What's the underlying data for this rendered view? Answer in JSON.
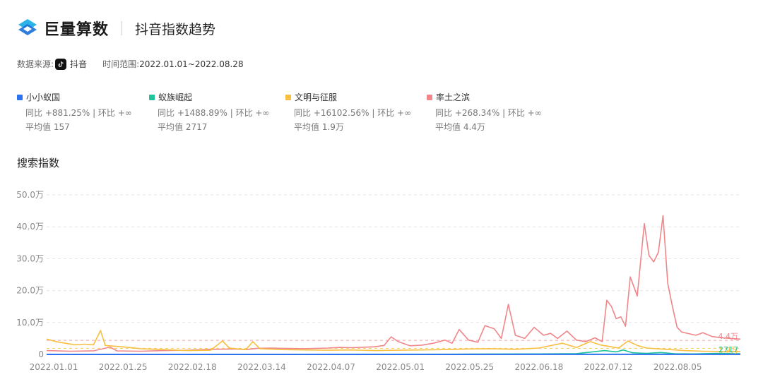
{
  "header": {
    "brand": "巨量算数",
    "title": "抖音指数趋势"
  },
  "source": {
    "source_label": "数据来源:",
    "source_name": "抖音",
    "source_icon": "tiktok-icon",
    "range_label": "时间范围:",
    "range_value": "2022.01.01~2022.08.28"
  },
  "legend": [
    {
      "name": "小小蚁国",
      "color": "#2d72f0",
      "compare": "同比 +881.25% | 环比 +∞",
      "average": "平均值 157"
    },
    {
      "name": "蚁族崛起",
      "color": "#1cc49a",
      "compare": "同比 +1488.89% | 环比 +∞",
      "average": "平均值 2717"
    },
    {
      "name": "文明与征服",
      "color": "#f7bf3f",
      "compare": "同比 +16102.56% | 环比 +∞",
      "average": "平均值 1.9万"
    },
    {
      "name": "率土之滨",
      "color": "#f0868a",
      "compare": "同比 +268.34% | 环比 +∞",
      "average": "平均值 4.4万"
    }
  ],
  "section_title": "搜索指数",
  "chart_data": {
    "type": "line",
    "title": "",
    "xlabel": "",
    "ylabel": "",
    "ylim": [
      0,
      500000
    ],
    "y_ticks": [
      0,
      100000,
      200000,
      300000,
      400000,
      500000
    ],
    "y_tick_labels": [
      "0",
      "10.0万",
      "20.0万",
      "30.0万",
      "40.0万",
      "50.0万"
    ],
    "x_tick_labels": [
      "2022.01.01",
      "2022.01.25",
      "2022.02.18",
      "2022.03.14",
      "2022.04.07",
      "2022.05.01",
      "2022.05.25",
      "2022.06.18",
      "2022.07.12",
      "2022.08.05"
    ],
    "x_tick_days": [
      0,
      24,
      48,
      72,
      96,
      120,
      144,
      168,
      192,
      216
    ],
    "x_range_days": [
      0,
      239
    ],
    "grid": "horizontal-dashed",
    "end_labels": [
      "4.4万",
      "1.9万",
      "2717"
    ],
    "series": [
      {
        "name": "率土之滨",
        "color": "#f0868a",
        "average": 44000,
        "points": [
          [
            0,
            12000
          ],
          [
            10,
            10000
          ],
          [
            20,
            11000
          ],
          [
            27,
            23000
          ],
          [
            30,
            11000
          ],
          [
            40,
            10000
          ],
          [
            50,
            12000
          ],
          [
            60,
            13000
          ],
          [
            70,
            16000
          ],
          [
            80,
            17000
          ],
          [
            85,
            15000
          ],
          [
            90,
            19000
          ],
          [
            96,
            20000
          ],
          [
            100,
            19000
          ],
          [
            110,
            18000
          ],
          [
            120,
            20000
          ],
          [
            125,
            22000
          ],
          [
            130,
            21000
          ],
          [
            140,
            24000
          ],
          [
            144,
            28000
          ],
          [
            147,
            55000
          ],
          [
            150,
            40000
          ],
          [
            155,
            27000
          ],
          [
            160,
            29000
          ],
          [
            165,
            35000
          ],
          [
            170,
            45000
          ],
          [
            173,
            35000
          ],
          [
            176,
            78000
          ],
          [
            180,
            45000
          ],
          [
            184,
            38000
          ],
          [
            187,
            90000
          ],
          [
            191,
            80000
          ],
          [
            194,
            50000
          ],
          [
            197,
            157000
          ],
          [
            200,
            60000
          ],
          [
            204,
            50000
          ],
          [
            208,
            85000
          ],
          [
            212,
            60000
          ],
          [
            215,
            66000
          ],
          [
            218,
            50000
          ],
          [
            222,
            73000
          ],
          [
            226,
            45000
          ],
          [
            230,
            40000
          ],
          [
            234,
            52000
          ],
          [
            237,
            40000
          ],
          [
            239,
            170000
          ],
          [
            241,
            150000
          ],
          [
            243,
            112000
          ],
          [
            245,
            118000
          ],
          [
            247,
            88000
          ],
          [
            249,
            243000
          ],
          [
            252,
            183000
          ],
          [
            255,
            410000
          ],
          [
            257,
            310000
          ],
          [
            259,
            290000
          ],
          [
            261,
            320000
          ],
          [
            263,
            435000
          ],
          [
            265,
            222000
          ],
          [
            267,
            150000
          ],
          [
            269,
            85000
          ],
          [
            271,
            70000
          ],
          [
            274,
            65000
          ],
          [
            277,
            60000
          ],
          [
            280,
            68000
          ],
          [
            284,
            56000
          ],
          [
            288,
            52000
          ],
          [
            292,
            50000
          ],
          [
            296,
            48000
          ]
        ]
      },
      {
        "name": "文明与征服",
        "color": "#f7bf3f",
        "average": 19000,
        "points": [
          [
            0,
            48000
          ],
          [
            4,
            40000
          ],
          [
            8,
            35000
          ],
          [
            12,
            30000
          ],
          [
            16,
            32000
          ],
          [
            20,
            30000
          ],
          [
            23,
            75000
          ],
          [
            25,
            28000
          ],
          [
            30,
            25000
          ],
          [
            35,
            22000
          ],
          [
            40,
            18000
          ],
          [
            50,
            15000
          ],
          [
            60,
            12000
          ],
          [
            70,
            13000
          ],
          [
            75,
            42000
          ],
          [
            78,
            20000
          ],
          [
            85,
            15000
          ],
          [
            88,
            40000
          ],
          [
            91,
            18000
          ],
          [
            100,
            15000
          ],
          [
            110,
            14000
          ],
          [
            120,
            13000
          ],
          [
            130,
            14000
          ],
          [
            140,
            12000
          ],
          [
            150,
            13000
          ],
          [
            160,
            14000
          ],
          [
            170,
            15000
          ],
          [
            180,
            17000
          ],
          [
            190,
            18000
          ],
          [
            200,
            16000
          ],
          [
            210,
            20000
          ],
          [
            220,
            35000
          ],
          [
            226,
            22000
          ],
          [
            232,
            40000
          ],
          [
            236,
            30000
          ],
          [
            240,
            25000
          ],
          [
            244,
            20000
          ],
          [
            248,
            42000
          ],
          [
            252,
            28000
          ],
          [
            256,
            20000
          ],
          [
            260,
            18000
          ],
          [
            266,
            15000
          ],
          [
            272,
            12000
          ],
          [
            280,
            10000
          ],
          [
            288,
            9000
          ],
          [
            296,
            9000
          ]
        ]
      },
      {
        "name": "蚁族崛起",
        "color": "#1cc49a",
        "average": 2717,
        "points": [
          [
            0,
            500
          ],
          [
            100,
            500
          ],
          [
            180,
            800
          ],
          [
            210,
            1500
          ],
          [
            226,
            2500
          ],
          [
            238,
            12000
          ],
          [
            243,
            8000
          ],
          [
            246,
            14000
          ],
          [
            250,
            5000
          ],
          [
            256,
            3000
          ],
          [
            262,
            6000
          ],
          [
            268,
            2000
          ],
          [
            276,
            1500
          ],
          [
            286,
            3000
          ],
          [
            296,
            2000
          ]
        ]
      },
      {
        "name": "小小蚁国",
        "color": "#2d72f0",
        "average": 157,
        "points": [
          [
            0,
            100
          ],
          [
            296,
            150
          ]
        ]
      }
    ]
  }
}
